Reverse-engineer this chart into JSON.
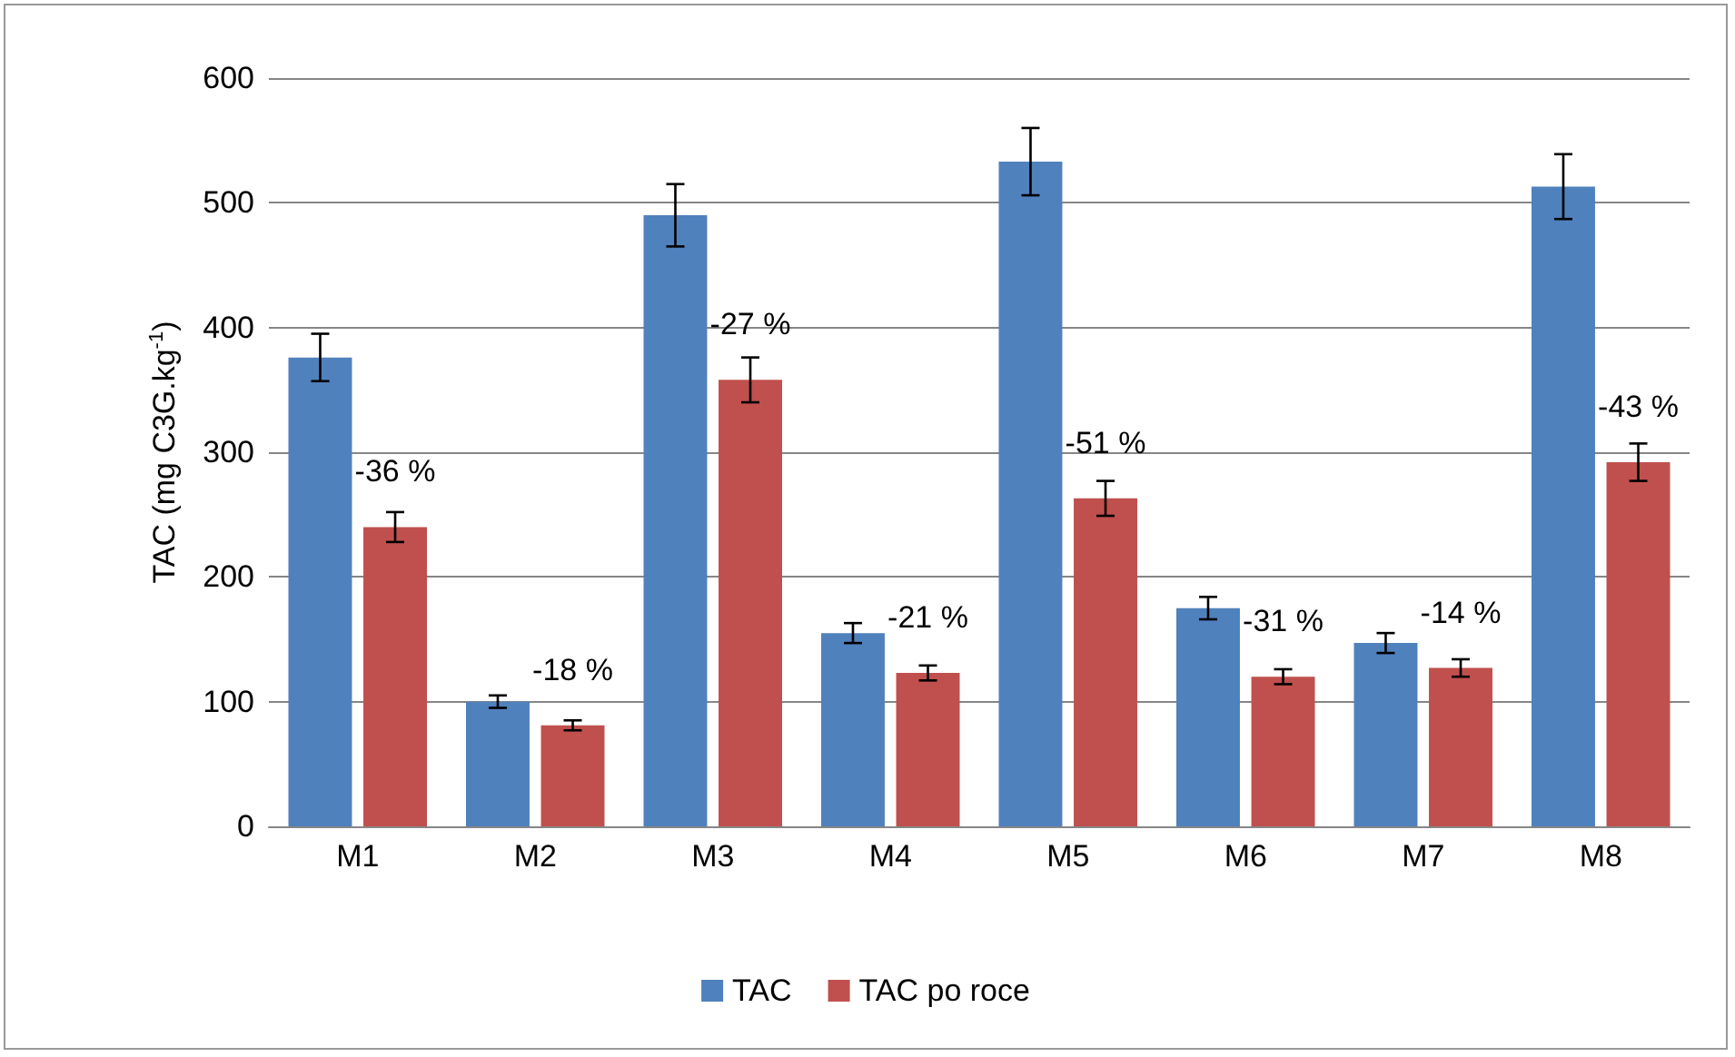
{
  "chart_data": {
    "type": "bar",
    "ylabel": "TAC (mg C3G.kg$^{-1}$)",
    "categories": [
      "M1",
      "M2",
      "M3",
      "M4",
      "M5",
      "M6",
      "M7",
      "M8"
    ],
    "series": [
      {
        "name": "TAC",
        "color": "#4f81bd",
        "values": [
          376,
          100,
          490,
          155,
          533,
          175,
          147,
          513
        ],
        "errors": [
          19,
          5,
          25,
          8,
          27,
          9,
          8,
          26
        ]
      },
      {
        "name": "TAC po roce",
        "color": "#c0504d",
        "values": [
          240,
          81,
          358,
          123,
          263,
          120,
          127,
          292
        ],
        "errors": [
          12,
          4,
          18,
          6,
          14,
          6,
          7,
          15
        ]
      }
    ],
    "annotations": [
      {
        "text": "-36 %",
        "x": "M1",
        "y": 240
      },
      {
        "text": "-18 %",
        "x": "M2",
        "y": 81
      },
      {
        "text": "-27 %",
        "x": "M3",
        "y": 358
      },
      {
        "text": "-21 %",
        "x": "M4",
        "y": 123
      },
      {
        "text": "-51 %",
        "x": "M5",
        "y": 263
      },
      {
        "text": "-31 %",
        "x": "M6",
        "y": 120
      },
      {
        "text": "-14 %",
        "x": "M7",
        "y": 127
      },
      {
        "text": "-43 %",
        "x": "M8",
        "y": 292
      }
    ],
    "ylim": [
      0,
      600
    ],
    "yticks": [
      0,
      100,
      200,
      300,
      400,
      500,
      600
    ],
    "grid": "y",
    "legend": "bottom"
  }
}
